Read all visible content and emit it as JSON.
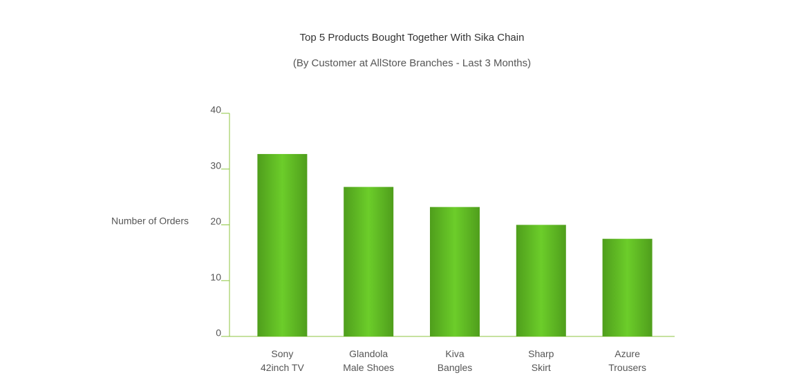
{
  "chart_data": {
    "type": "bar",
    "title": "Top 5 Products Bought Together With Sika Chain",
    "subtitle": "(By Customer at AllStore Branches - Last 3 Months)",
    "y_label": "Number of Orders",
    "categories": [
      "Sony\n42inch TV",
      "Glandola\nMale Shoes",
      "Kiva\nBangles",
      "Sharp\nSkirt",
      "Azure\nTrousers"
    ],
    "values": [
      32.7,
      26.8,
      23.2,
      20,
      17.5
    ],
    "color": "#62c526",
    "ylim": [
      0,
      40
    ],
    "yticks": [
      0,
      10,
      20,
      30,
      40
    ],
    "grid": false
  }
}
